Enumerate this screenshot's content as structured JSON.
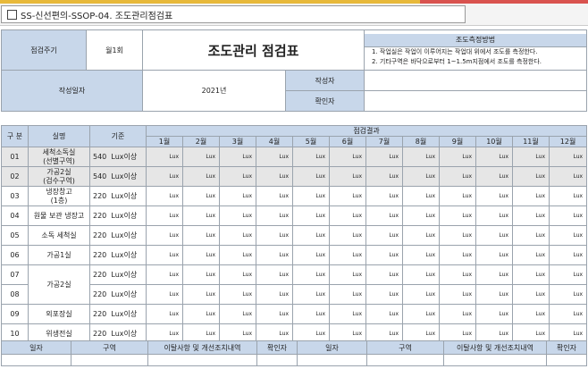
{
  "tab": {
    "title": "SS-신선편의-SSOP-04. 조도관리점검표"
  },
  "header": {
    "cycle_label": "점검주기",
    "cycle_value": "월1회",
    "title": "조도관리 점검표",
    "method_label": "조도측정방법",
    "method_1": "1. 작업실은 작업이 이루어지는 작업대 위에서 조도를 측정한다.",
    "method_2": "2. 기타구역은 바닥으로부터 1~1.5m지점에서 조도를 측정한다.",
    "date_label": "작성일자",
    "date_value": "2021년",
    "writer_label": "작성자",
    "checker_label": "확인자"
  },
  "grid": {
    "col_division": "구 분",
    "col_name": "실명",
    "col_standard": "기준",
    "col_results": "점검결과",
    "months": [
      "1월",
      "2월",
      "3월",
      "4월",
      "5월",
      "6월",
      "7월",
      "8월",
      "9월",
      "10월",
      "11월",
      "12월"
    ],
    "unit": "Lux",
    "rows": [
      {
        "no": "01",
        "name_1": "세척소독실",
        "name_2": "(선별구역)",
        "std": "540",
        "std_unit": "Lux이상"
      },
      {
        "no": "02",
        "name_1": "가공2실",
        "name_2": "(검수구역)",
        "std": "540",
        "std_unit": "Lux이상"
      },
      {
        "no": "03",
        "name_1": "냉장창고",
        "name_2": "(1층)",
        "std": "220",
        "std_unit": "Lux이상"
      },
      {
        "no": "04",
        "name_1": "원물 보관 냉장고",
        "std": "220",
        "std_unit": "Lux이상"
      },
      {
        "no": "05",
        "name_1": "소독 세척실",
        "std": "220",
        "std_unit": "Lux이상"
      },
      {
        "no": "06",
        "name_1": "가공1실",
        "std": "220",
        "std_unit": "Lux이상"
      },
      {
        "no": "07",
        "std": "220",
        "std_unit": "Lux이상"
      },
      {
        "no": "08",
        "std": "220",
        "std_unit": "Lux이상"
      },
      {
        "no": "09",
        "name_1": "외포장실",
        "std": "220",
        "std_unit": "Lux이상"
      },
      {
        "no": "10",
        "name_1": "위생전실",
        "std": "220",
        "std_unit": "Lux이상"
      }
    ],
    "merged_name_07_08": "가공2실"
  },
  "footer": {
    "date": "일자",
    "area": "구역",
    "deviation": "이탈사항 및 개선조치내역",
    "checker": "확인자"
  }
}
